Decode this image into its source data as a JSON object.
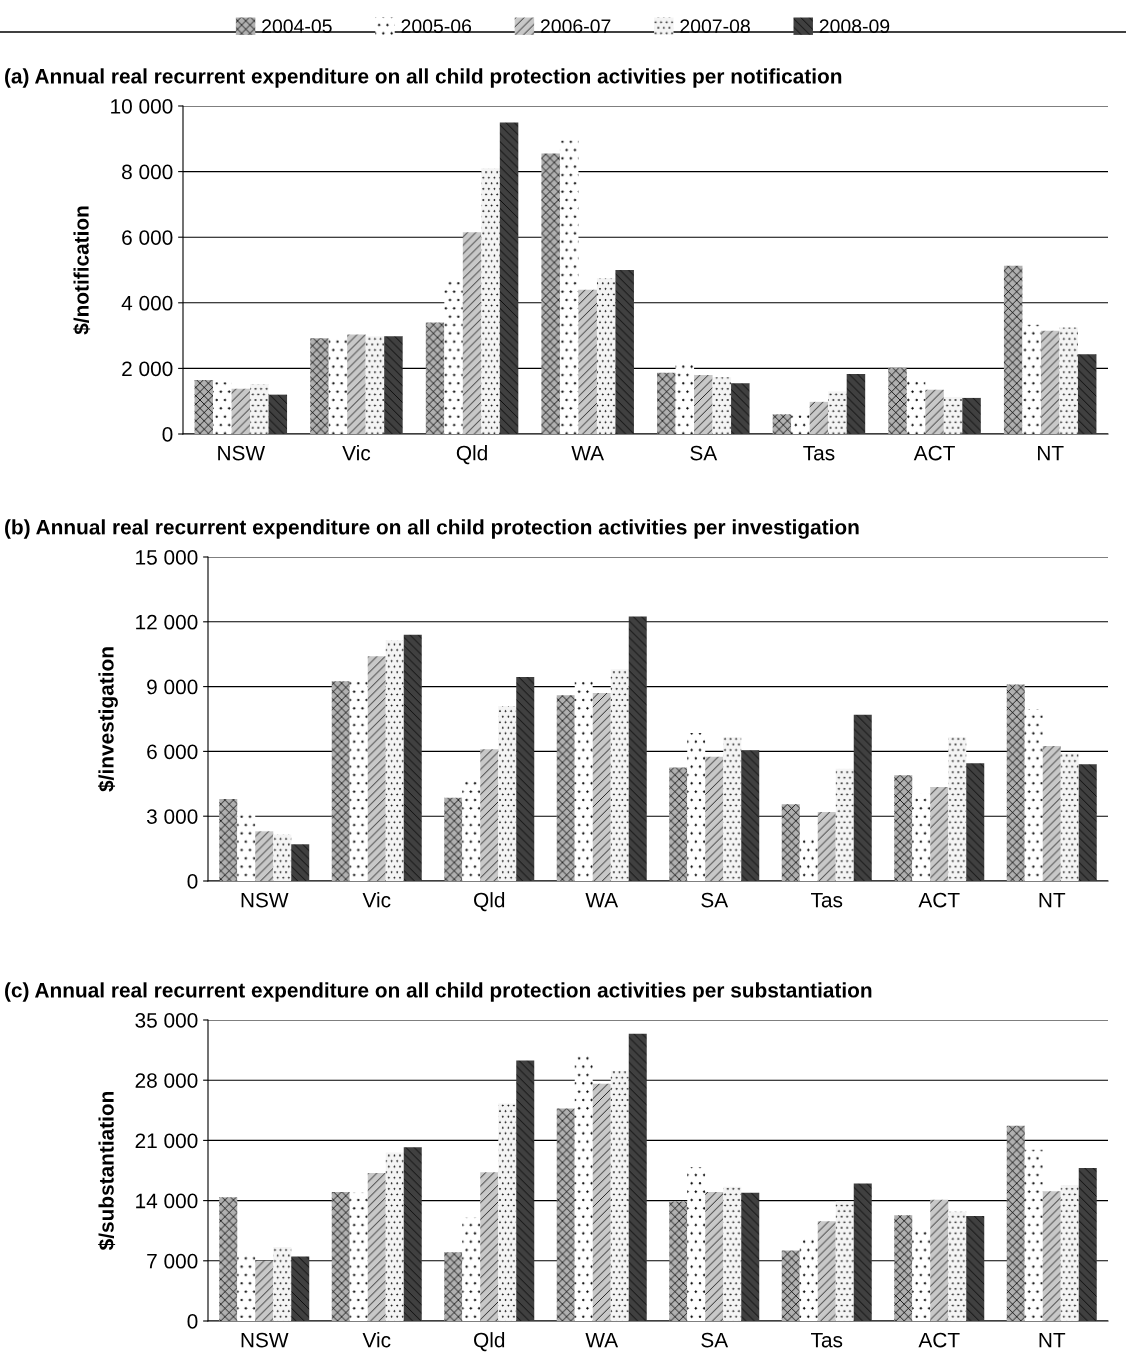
{
  "chart_data": [
    {
      "type": "bar",
      "title": "(a) Annual real recurrent expenditure on all child protection activities per notification",
      "ylabel": "$/notification",
      "categories": [
        "NSW",
        "Vic",
        "Qld",
        "WA",
        "SA",
        "Tas",
        "ACT",
        "NT"
      ],
      "legend": "top",
      "grid": "y",
      "ylim": [
        0,
        10000
      ],
      "yticks": [
        0,
        {
          "value": 2000,
          "label": "2 000"
        },
        {
          "value": 4000,
          "label": "4 000"
        },
        {
          "value": 6000,
          "label": "6 000"
        },
        {
          "value": 8000,
          "label": "8 000"
        },
        {
          "value": 10000,
          "label": "10 000"
        }
      ],
      "series": [
        {
          "name": "2004-05",
          "color": "#b0b0b0",
          "values": [
            1650,
            2920,
            3400,
            8550,
            1870,
            600,
            2020,
            5130
          ]
        },
        {
          "name": "2005-06",
          "color": "#ffffff",
          "values": [
            1580,
            2950,
            4700,
            8950,
            2200,
            580,
            1650,
            3330
          ]
        },
        {
          "name": "2006-07",
          "color": "#c8c8c8",
          "values": [
            1380,
            3030,
            6150,
            4400,
            1800,
            980,
            1350,
            3150
          ]
        },
        {
          "name": "2007-08",
          "color": "#f4f4f4",
          "values": [
            1520,
            2980,
            8100,
            4750,
            1730,
            1300,
            1130,
            3250
          ]
        },
        {
          "name": "2008-09",
          "color": "#404040",
          "values": [
            1200,
            2980,
            9500,
            5000,
            1550,
            1830,
            1100,
            2430
          ]
        }
      ]
    },
    {
      "type": "bar",
      "title": "(b) Annual real recurrent expenditure on all child protection activities per investigation",
      "ylabel": "$/investigation",
      "categories": [
        "NSW",
        "Vic",
        "Qld",
        "WA",
        "SA",
        "Tas",
        "ACT",
        "NT"
      ],
      "grid": "y",
      "ylim": [
        0,
        15000
      ],
      "yticks": [
        0,
        {
          "value": 3000,
          "label": "3 000"
        },
        {
          "value": 6000,
          "label": "6 000"
        },
        {
          "value": 9000,
          "label": "9 000"
        },
        {
          "value": 12000,
          "label": "12 000"
        },
        {
          "value": 15000,
          "label": "15 000"
        }
      ],
      "series": [
        {
          "color": "#b0b0b0",
          "values": [
            3800,
            9250,
            3850,
            8600,
            5250,
            3550,
            4900,
            9100
          ]
        },
        {
          "color": "#ffffff",
          "values": [
            3200,
            9400,
            4700,
            9250,
            6850,
            2000,
            4050,
            7950
          ]
        },
        {
          "color": "#c8c8c8",
          "values": [
            2300,
            10400,
            6100,
            8700,
            5750,
            3200,
            4350,
            6250
          ]
        },
        {
          "color": "#f4f4f4",
          "values": [
            2150,
            11150,
            8100,
            9800,
            6650,
            5200,
            6650,
            5900
          ]
        },
        {
          "color": "#404040",
          "values": [
            1700,
            11400,
            9450,
            12250,
            6050,
            7700,
            5450,
            5400
          ]
        }
      ]
    },
    {
      "type": "bar",
      "title": "(c) Annual real recurrent expenditure on all child protection activities per substantiation",
      "ylabel": "$/substantiation",
      "categories": [
        "NSW",
        "Vic",
        "Qld",
        "WA",
        "SA",
        "Tas",
        "ACT",
        "NT"
      ],
      "grid": "y",
      "ylim": [
        0,
        35000
      ],
      "yticks": [
        0,
        {
          "value": 7000,
          "label": "7 000"
        },
        {
          "value": 14000,
          "label": "14 000"
        },
        {
          "value": 21000,
          "label": "21 000"
        },
        {
          "value": 28000,
          "label": "28 000"
        },
        {
          "value": 35000,
          "label": "35 000"
        }
      ],
      "series": [
        {
          "color": "#b0b0b0",
          "values": [
            14400,
            15000,
            8000,
            24700,
            13900,
            8200,
            12300,
            22700
          ]
        },
        {
          "color": "#ffffff",
          "values": [
            8000,
            14900,
            12000,
            30800,
            17900,
            9700,
            10400,
            19900
          ]
        },
        {
          "color": "#c8c8c8",
          "values": [
            7000,
            17200,
            17300,
            27600,
            15000,
            11600,
            14100,
            15100
          ]
        },
        {
          "color": "#f4f4f4",
          "values": [
            8600,
            19600,
            25300,
            29100,
            15600,
            13900,
            12700,
            15800
          ]
        },
        {
          "color": "#404040",
          "values": [
            7500,
            20200,
            30300,
            33400,
            14900,
            16000,
            12200,
            17800
          ]
        }
      ]
    }
  ]
}
